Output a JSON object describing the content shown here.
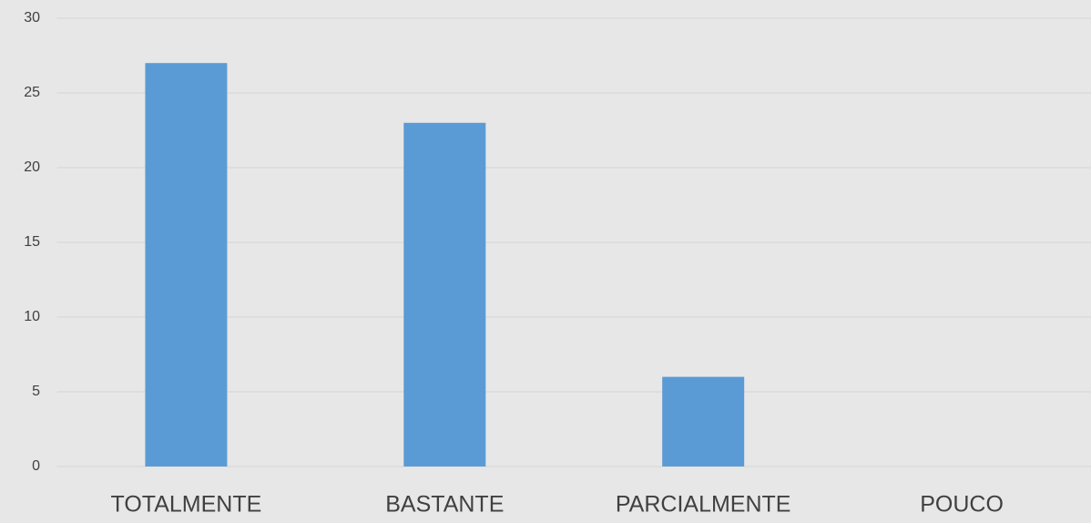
{
  "chart_data": {
    "type": "bar",
    "categories": [
      "TOTALMENTE",
      "BASTANTE",
      "PARCIALMENTE",
      "POUCO"
    ],
    "values": [
      27,
      23,
      6,
      0
    ],
    "color": "#5b9bd5",
    "ylim": [
      0,
      30
    ],
    "yticks": [
      0,
      5,
      10,
      15,
      20,
      25,
      30
    ],
    "grid": true
  }
}
